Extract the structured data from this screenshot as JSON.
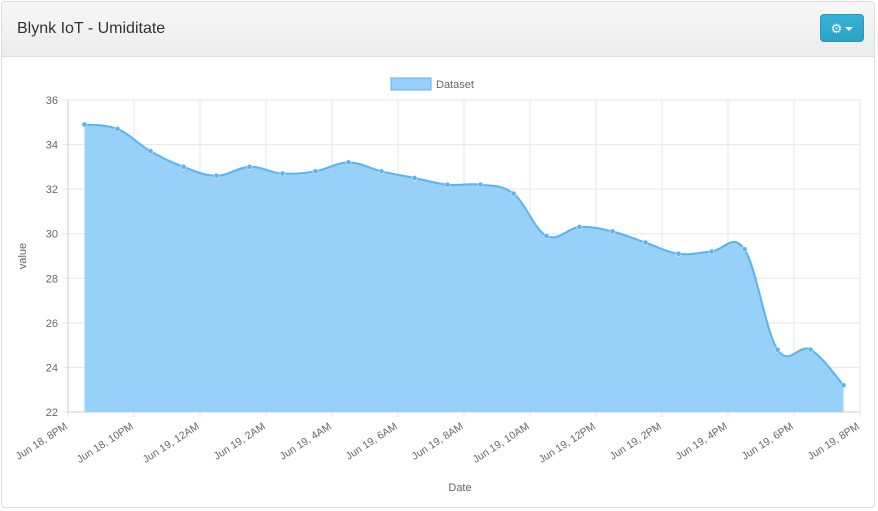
{
  "header": {
    "title": "Blynk IoT - Umiditate",
    "settings_icon": "gear-icon",
    "caret_icon": "caret-down-icon"
  },
  "chart_data": {
    "type": "area",
    "xlabel": "Date",
    "ylabel": "value",
    "ylim": [
      22,
      36
    ],
    "yticks": [
      22,
      24,
      26,
      28,
      30,
      32,
      34,
      36
    ],
    "xticks": [
      "Jun 18, 8PM",
      "Jun 18, 10PM",
      "Jun 19, 12AM",
      "Jun 19, 2AM",
      "Jun 19, 4AM",
      "Jun 19, 6AM",
      "Jun 19, 8AM",
      "Jun 19, 10AM",
      "Jun 19, 12PM",
      "Jun 19, 2PM",
      "Jun 19, 4PM",
      "Jun 19, 6PM",
      "Jun 19, 8PM"
    ],
    "grid": true,
    "legend_position": "top-center",
    "series": [
      {
        "name": "Dataset",
        "color": "#97d1fa",
        "line_color": "#5ab3f2",
        "x": [
          0.5,
          1.5,
          2.5,
          3.5,
          4.5,
          5.5,
          6.5,
          7.5,
          8.5,
          9.5,
          10.5,
          11.5,
          12.5,
          13.5,
          14.5,
          15.5,
          16.5,
          17.5,
          18.5,
          19.5,
          20.5,
          21.5,
          22.5,
          23.5
        ],
        "values": [
          34.9,
          34.7,
          33.7,
          33.0,
          32.6,
          33.0,
          32.7,
          32.8,
          33.2,
          32.8,
          32.5,
          32.2,
          32.2,
          31.8,
          29.9,
          30.3,
          30.1,
          29.6,
          29.1,
          29.2,
          29.3,
          24.8,
          24.8,
          23.2
        ]
      }
    ]
  }
}
